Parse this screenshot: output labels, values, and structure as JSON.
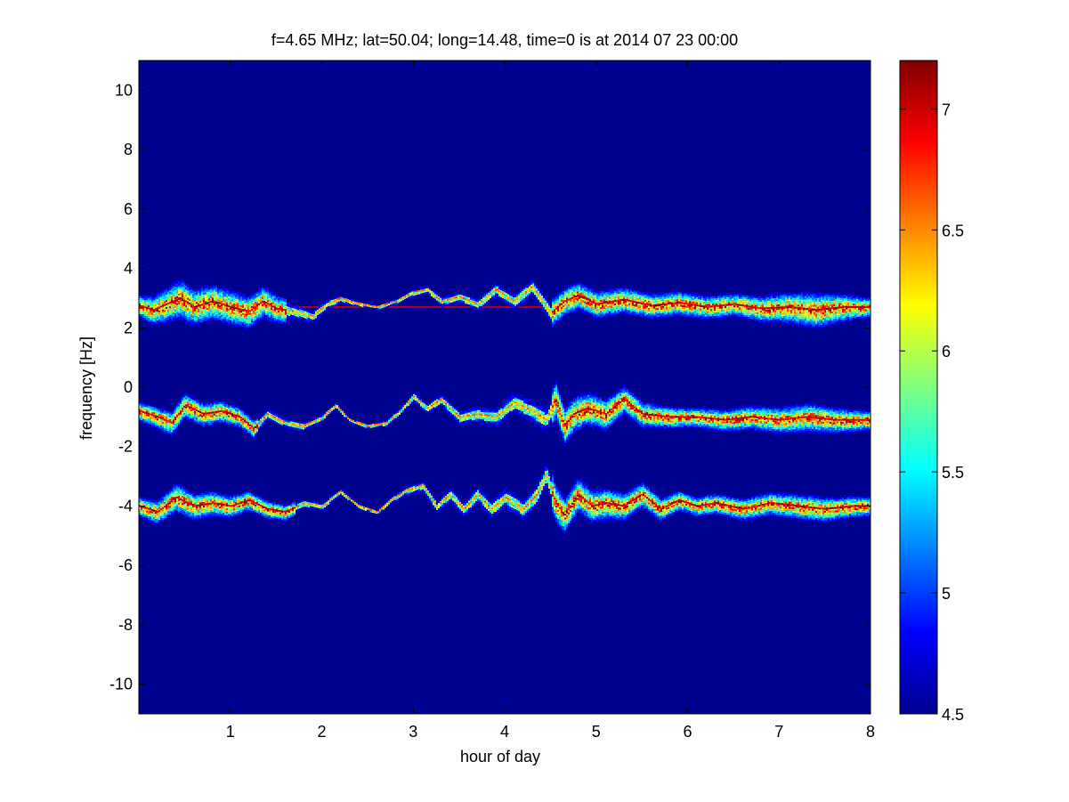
{
  "chart_data": {
    "type": "heatmap",
    "title": "f=4.65 MHz;  lat=50.04; long=14.48, time=0 is at 2014 07 23 00:00",
    "xlabel": "hour of day",
    "ylabel": "frequency [Hz]",
    "xlim": [
      0,
      8
    ],
    "ylim": [
      -11,
      11
    ],
    "xticks": [
      1,
      2,
      3,
      4,
      5,
      6,
      7,
      8
    ],
    "xtick_labels": [
      "1",
      "2",
      "3",
      "4",
      "5",
      "6",
      "7",
      "8"
    ],
    "yticks": [
      10,
      8,
      6,
      4,
      2,
      0,
      -2,
      -4,
      -6,
      -8,
      -10
    ],
    "ytick_labels": [
      "10",
      "8",
      "6",
      "4",
      "2",
      "0",
      "-2",
      "-4",
      "-6",
      "-8",
      "-10"
    ],
    "colorbar": {
      "limits": [
        4.5,
        7.2
      ],
      "ticks": [
        7,
        6.5,
        6,
        5.5,
        5,
        4.5
      ],
      "tick_labels": [
        "7",
        "6.5",
        "6",
        "5.5",
        "5",
        "4.5"
      ],
      "colormap": "jet"
    },
    "background_value": 4.5,
    "bands": [
      {
        "center_hz": 2.7,
        "has_constant_carrier_line": true,
        "trace": [
          [
            0,
            2.75
          ],
          [
            0.15,
            2.6
          ],
          [
            0.3,
            2.8
          ],
          [
            0.45,
            3.0
          ],
          [
            0.6,
            2.7
          ],
          [
            0.8,
            2.9
          ],
          [
            1.0,
            2.7
          ],
          [
            1.2,
            2.55
          ],
          [
            1.35,
            2.9
          ],
          [
            1.5,
            2.65
          ],
          [
            1.7,
            2.55
          ],
          [
            1.9,
            2.4
          ],
          [
            2.05,
            2.8
          ],
          [
            2.2,
            3.0
          ],
          [
            2.35,
            2.85
          ],
          [
            2.6,
            2.7
          ],
          [
            2.8,
            2.9
          ],
          [
            3.0,
            3.2
          ],
          [
            3.15,
            3.3
          ],
          [
            3.3,
            2.9
          ],
          [
            3.5,
            3.05
          ],
          [
            3.7,
            2.8
          ],
          [
            3.9,
            3.3
          ],
          [
            4.1,
            2.9
          ],
          [
            4.3,
            3.4
          ],
          [
            4.5,
            2.5
          ],
          [
            4.65,
            2.9
          ],
          [
            4.8,
            3.1
          ],
          [
            5.0,
            2.8
          ],
          [
            5.3,
            2.95
          ],
          [
            5.6,
            2.75
          ],
          [
            5.9,
            2.85
          ],
          [
            6.2,
            2.7
          ],
          [
            6.5,
            2.8
          ],
          [
            6.8,
            2.65
          ],
          [
            7.1,
            2.7
          ],
          [
            7.4,
            2.6
          ],
          [
            7.7,
            2.7
          ],
          [
            8.0,
            2.7
          ]
        ],
        "strong_segments": [
          [
            0,
            1.6
          ],
          [
            4.5,
            8.0
          ]
        ],
        "spread_hz": [
          [
            0,
            0.35
          ],
          [
            0.4,
            0.6
          ],
          [
            1.3,
            0.5
          ],
          [
            2.5,
            0.08
          ],
          [
            4.5,
            0.45
          ],
          [
            6.5,
            0.35
          ],
          [
            7.4,
            0.55
          ],
          [
            8.0,
            0.3
          ]
        ]
      },
      {
        "center_hz": -1.0,
        "has_constant_carrier_line": false,
        "trace": [
          [
            0,
            -0.8
          ],
          [
            0.2,
            -1.0
          ],
          [
            0.35,
            -1.2
          ],
          [
            0.5,
            -0.6
          ],
          [
            0.7,
            -0.9
          ],
          [
            0.9,
            -0.8
          ],
          [
            1.1,
            -1.0
          ],
          [
            1.25,
            -1.4
          ],
          [
            1.4,
            -0.9
          ],
          [
            1.6,
            -1.2
          ],
          [
            1.8,
            -1.3
          ],
          [
            2.0,
            -1.0
          ],
          [
            2.15,
            -0.6
          ],
          [
            2.3,
            -1.1
          ],
          [
            2.5,
            -1.3
          ],
          [
            2.7,
            -1.2
          ],
          [
            2.85,
            -0.8
          ],
          [
            3.0,
            -0.3
          ],
          [
            3.15,
            -0.7
          ],
          [
            3.3,
            -0.4
          ],
          [
            3.5,
            -1.0
          ],
          [
            3.7,
            -0.9
          ],
          [
            3.9,
            -1.0
          ],
          [
            4.1,
            -0.5
          ],
          [
            4.3,
            -0.8
          ],
          [
            4.45,
            -1.1
          ],
          [
            4.55,
            -0.4
          ],
          [
            4.65,
            -1.3
          ],
          [
            4.75,
            -0.9
          ],
          [
            4.9,
            -0.7
          ],
          [
            5.1,
            -0.9
          ],
          [
            5.3,
            -0.4
          ],
          [
            5.5,
            -0.9
          ],
          [
            5.8,
            -1.0
          ],
          [
            6.1,
            -1.0
          ],
          [
            6.4,
            -1.1
          ],
          [
            6.7,
            -1.0
          ],
          [
            7.0,
            -1.1
          ],
          [
            7.3,
            -1.0
          ],
          [
            7.6,
            -1.1
          ],
          [
            8.0,
            -1.1
          ]
        ],
        "strong_segments": [
          [
            0,
            1.3
          ],
          [
            4.5,
            8.0
          ]
        ],
        "spread_hz": [
          [
            0,
            0.3
          ],
          [
            0.5,
            0.4
          ],
          [
            2.5,
            0.1
          ],
          [
            4.55,
            0.6
          ],
          [
            6.0,
            0.3
          ],
          [
            7.4,
            0.45
          ],
          [
            8.0,
            0.3
          ]
        ]
      },
      {
        "center_hz": -4.0,
        "has_constant_carrier_line": false,
        "trace": [
          [
            0,
            -4.0
          ],
          [
            0.2,
            -4.2
          ],
          [
            0.4,
            -3.7
          ],
          [
            0.6,
            -4.0
          ],
          [
            0.8,
            -3.9
          ],
          [
            1.0,
            -4.0
          ],
          [
            1.2,
            -3.8
          ],
          [
            1.4,
            -4.1
          ],
          [
            1.6,
            -4.2
          ],
          [
            1.8,
            -3.9
          ],
          [
            2.0,
            -4.0
          ],
          [
            2.2,
            -3.5
          ],
          [
            2.4,
            -4.0
          ],
          [
            2.6,
            -4.2
          ],
          [
            2.75,
            -3.8
          ],
          [
            2.9,
            -3.5
          ],
          [
            3.1,
            -3.3
          ],
          [
            3.25,
            -4.0
          ],
          [
            3.4,
            -3.6
          ],
          [
            3.55,
            -4.1
          ],
          [
            3.7,
            -3.6
          ],
          [
            3.85,
            -4.1
          ],
          [
            4.0,
            -3.7
          ],
          [
            4.2,
            -4.1
          ],
          [
            4.35,
            -3.6
          ],
          [
            4.45,
            -2.9
          ],
          [
            4.55,
            -3.9
          ],
          [
            4.65,
            -4.3
          ],
          [
            4.8,
            -3.6
          ],
          [
            4.95,
            -4.0
          ],
          [
            5.1,
            -3.9
          ],
          [
            5.3,
            -4.0
          ],
          [
            5.5,
            -3.6
          ],
          [
            5.7,
            -4.1
          ],
          [
            5.9,
            -3.8
          ],
          [
            6.1,
            -4.0
          ],
          [
            6.3,
            -3.9
          ],
          [
            6.6,
            -4.1
          ],
          [
            6.9,
            -3.9
          ],
          [
            7.2,
            -4.0
          ],
          [
            7.5,
            -4.1
          ],
          [
            7.8,
            -4.0
          ],
          [
            8.0,
            -4.0
          ]
        ],
        "strong_segments": [
          [
            0,
            1.7
          ],
          [
            4.5,
            8.0
          ]
        ],
        "spread_hz": [
          [
            0,
            0.3
          ],
          [
            0.4,
            0.45
          ],
          [
            2.5,
            0.1
          ],
          [
            4.5,
            0.6
          ],
          [
            6.0,
            0.3
          ],
          [
            7.4,
            0.4
          ],
          [
            8.0,
            0.3
          ]
        ]
      }
    ]
  }
}
